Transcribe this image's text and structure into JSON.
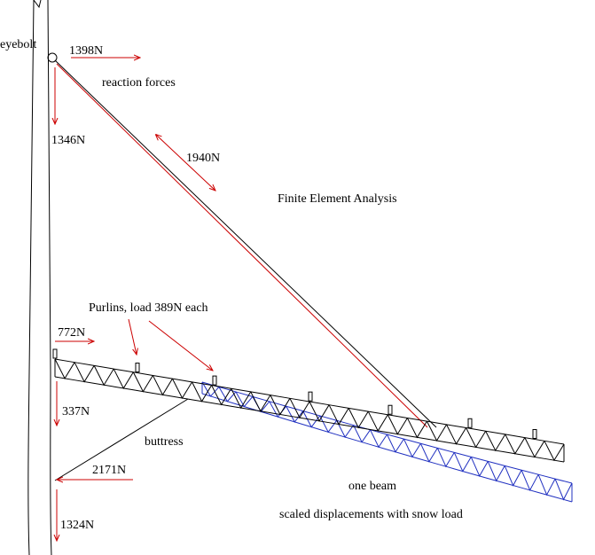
{
  "labels": {
    "eyebolt": "eyebolt",
    "eyebolt_x_force": "1398N",
    "reaction_forces": "reaction forces",
    "eyebolt_y_force": "1346N",
    "cable_force": "1940N",
    "title": "Finite Element Analysis",
    "purlins": "Purlins, load 389N each",
    "beam_x_force": "772N",
    "beam_y_force": "337N",
    "buttress": "buttress",
    "buttress_x_force": "2171N",
    "one_beam": "one beam",
    "displacements": "scaled displacements with snow load",
    "buttress_y_force": "1324N"
  }
}
